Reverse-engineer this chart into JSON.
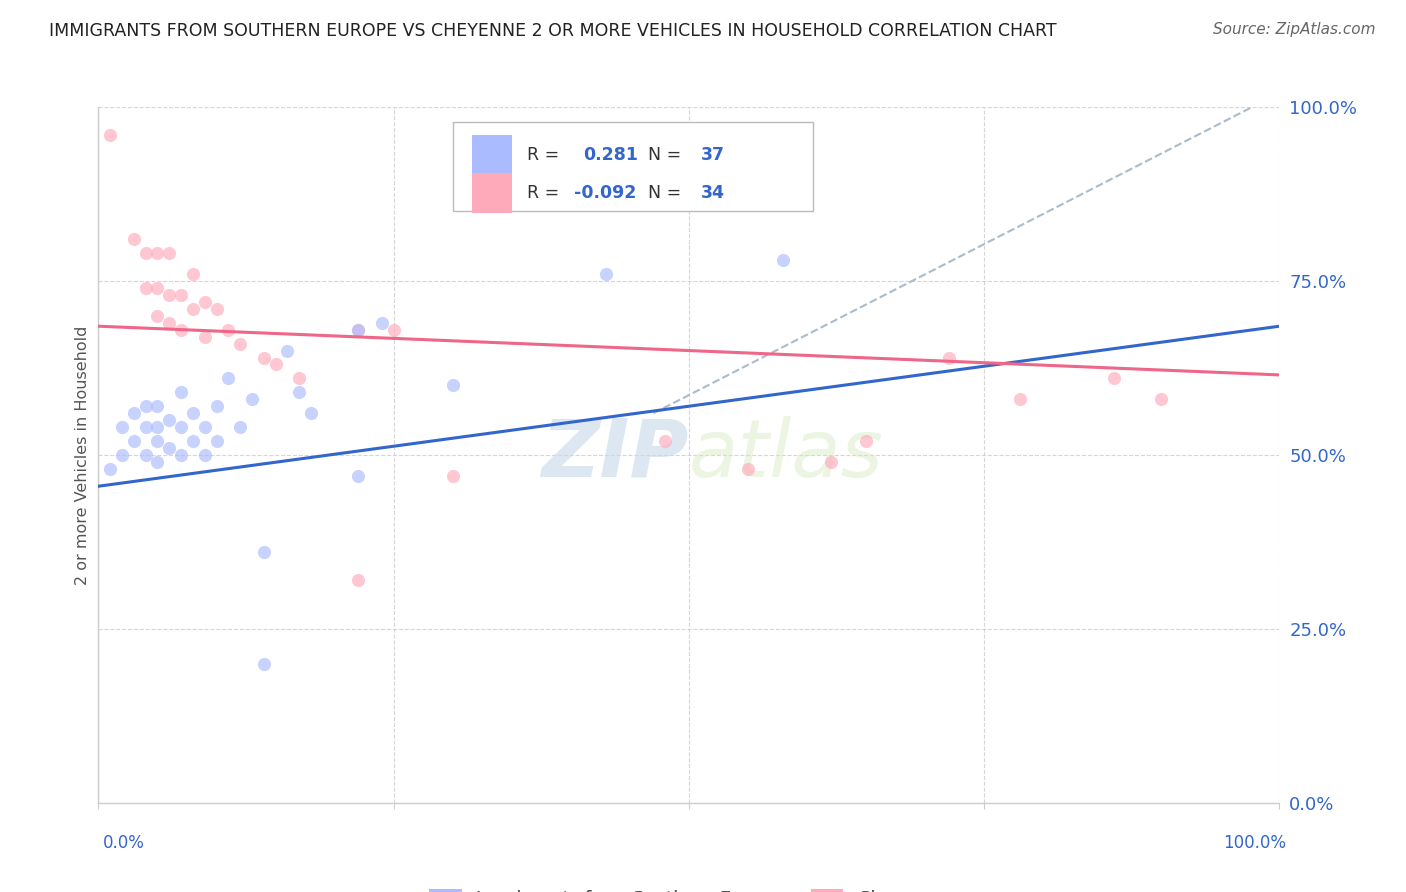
{
  "title": "IMMIGRANTS FROM SOUTHERN EUROPE VS CHEYENNE 2 OR MORE VEHICLES IN HOUSEHOLD CORRELATION CHART",
  "source": "Source: ZipAtlas.com",
  "ylabel": "2 or more Vehicles in Household",
  "yticks": [
    "0.0%",
    "25.0%",
    "50.0%",
    "75.0%",
    "100.0%"
  ],
  "ytick_vals": [
    0.0,
    0.25,
    0.5,
    0.75,
    1.0
  ],
  "xlim": [
    0.0,
    1.0
  ],
  "ylim": [
    0.0,
    1.0
  ],
  "legend1_r": "R =",
  "legend1_rval": " 0.281",
  "legend1_n": " N =",
  "legend1_nval": " 37",
  "legend2_r": "R =",
  "legend2_rval": "-0.092",
  "legend2_n": " N =",
  "legend2_nval": " 34",
  "legend1_patch_color": "#aabbff",
  "legend2_patch_color": "#ffaabb",
  "line1_color": "#3366cc",
  "line2_color": "#ee6688",
  "dash_color": "#aabbcc",
  "watermark": "ZIPatlas",
  "blue_scatter_x": [
    0.01,
    0.02,
    0.02,
    0.03,
    0.03,
    0.04,
    0.04,
    0.04,
    0.05,
    0.05,
    0.05,
    0.05,
    0.06,
    0.06,
    0.07,
    0.07,
    0.07,
    0.08,
    0.08,
    0.09,
    0.09,
    0.1,
    0.1,
    0.11,
    0.12,
    0.13,
    0.14,
    0.16,
    0.17,
    0.18,
    0.22,
    0.24,
    0.43,
    0.58,
    0.14,
    0.22,
    0.3
  ],
  "blue_scatter_y": [
    0.48,
    0.5,
    0.54,
    0.52,
    0.56,
    0.5,
    0.54,
    0.57,
    0.49,
    0.52,
    0.54,
    0.57,
    0.51,
    0.55,
    0.5,
    0.54,
    0.59,
    0.52,
    0.56,
    0.5,
    0.54,
    0.52,
    0.57,
    0.61,
    0.54,
    0.58,
    0.36,
    0.65,
    0.59,
    0.56,
    0.47,
    0.69,
    0.76,
    0.78,
    0.2,
    0.68,
    0.6
  ],
  "pink_scatter_x": [
    0.01,
    0.03,
    0.04,
    0.04,
    0.05,
    0.05,
    0.05,
    0.06,
    0.06,
    0.06,
    0.07,
    0.07,
    0.08,
    0.08,
    0.09,
    0.09,
    0.1,
    0.11,
    0.12,
    0.14,
    0.15,
    0.17,
    0.22,
    0.25,
    0.3,
    0.48,
    0.55,
    0.62,
    0.65,
    0.72,
    0.78,
    0.86,
    0.9,
    0.22
  ],
  "pink_scatter_y": [
    0.96,
    0.81,
    0.74,
    0.79,
    0.7,
    0.74,
    0.79,
    0.69,
    0.73,
    0.79,
    0.68,
    0.73,
    0.71,
    0.76,
    0.67,
    0.72,
    0.71,
    0.68,
    0.66,
    0.64,
    0.63,
    0.61,
    0.68,
    0.68,
    0.47,
    0.52,
    0.48,
    0.49,
    0.52,
    0.64,
    0.58,
    0.61,
    0.58,
    0.32
  ],
  "bg_color": "#ffffff",
  "grid_color": "#cccccc",
  "tick_color": "#3366cc",
  "scatter_alpha": 0.65,
  "scatter_size": 90,
  "blue_line_x": [
    0.0,
    1.0
  ],
  "blue_line_y": [
    0.455,
    0.685
  ],
  "pink_line_x": [
    0.0,
    1.0
  ],
  "pink_line_y": [
    0.685,
    0.615
  ],
  "dash_line_x": [
    0.47,
    1.0
  ],
  "dash_line_y": [
    0.56,
    1.02
  ]
}
